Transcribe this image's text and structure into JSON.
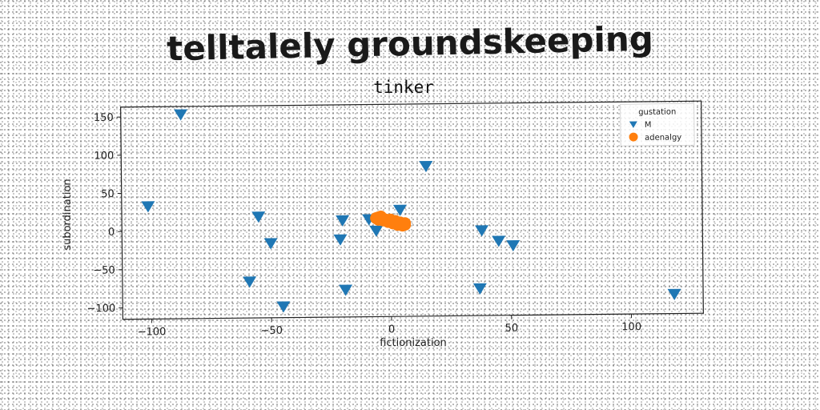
{
  "page_title": "telltalely groundskeeping",
  "chart_data": {
    "type": "scatter",
    "title": "tinker",
    "xlabel": "fictionization",
    "ylabel": "subordination",
    "xlim": [
      -112,
      130
    ],
    "ylim": [
      -115,
      163
    ],
    "xticks": [
      -100,
      -50,
      0,
      50,
      100
    ],
    "yticks": [
      -100,
      -50,
      0,
      50,
      100,
      150
    ],
    "grid": false,
    "legend": {
      "title": "gustation",
      "placement": "top-right"
    },
    "series": [
      {
        "name": "M",
        "marker": "triangle-down",
        "color": "#1f77b4",
        "points": [
          {
            "x": -87,
            "y": 153
          },
          {
            "x": 15,
            "y": 82
          },
          {
            "x": -101,
            "y": 33
          },
          {
            "x": -55,
            "y": 18
          },
          {
            "x": -20,
            "y": 12
          },
          {
            "x": -9,
            "y": 13
          },
          {
            "x": 4,
            "y": 25
          },
          {
            "x": -6,
            "y": -2
          },
          {
            "x": -21,
            "y": -13
          },
          {
            "x": -50,
            "y": -17
          },
          {
            "x": 38,
            "y": -3
          },
          {
            "x": 45,
            "y": -17
          },
          {
            "x": 51,
            "y": -23
          },
          {
            "x": -59,
            "y": -67
          },
          {
            "x": -19,
            "y": -79
          },
          {
            "x": 37,
            "y": -79
          },
          {
            "x": -45,
            "y": -100
          },
          {
            "x": 118,
            "y": -89
          }
        ]
      },
      {
        "name": "adenalgy",
        "marker": "circle",
        "color": "#ff7f0e",
        "points": [
          {
            "x": -6,
            "y": 14
          },
          {
            "x": -5,
            "y": 15
          },
          {
            "x": -4,
            "y": 14
          },
          {
            "x": -3,
            "y": 13
          },
          {
            "x": -2,
            "y": 12
          },
          {
            "x": -1,
            "y": 11
          },
          {
            "x": 0,
            "y": 10
          },
          {
            "x": 1,
            "y": 9
          },
          {
            "x": 2,
            "y": 8
          },
          {
            "x": 3,
            "y": 7
          },
          {
            "x": 4,
            "y": 6
          },
          {
            "x": 5,
            "y": 5
          },
          {
            "x": 6,
            "y": 5
          },
          {
            "x": -5,
            "y": 12
          },
          {
            "x": -3,
            "y": 11
          },
          {
            "x": -1,
            "y": 9
          },
          {
            "x": 1,
            "y": 7
          },
          {
            "x": 3,
            "y": 5
          },
          {
            "x": 5,
            "y": 4
          },
          {
            "x": -4,
            "y": 16
          },
          {
            "x": 0,
            "y": 12
          },
          {
            "x": 2,
            "y": 10
          },
          {
            "x": 4,
            "y": 8
          },
          {
            "x": 6,
            "y": 7
          }
        ]
      }
    ]
  }
}
